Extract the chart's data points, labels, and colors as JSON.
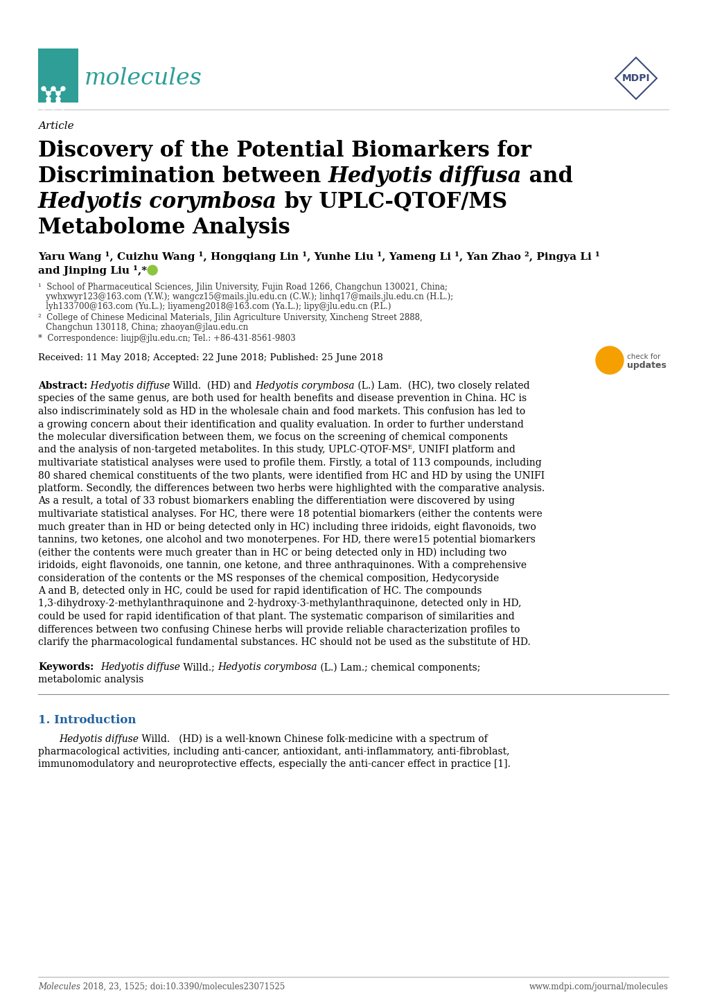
{
  "background_color": "#ffffff",
  "molecules_logo_color": "#2e9e96",
  "mdpi_color": "#3b4a7a",
  "article_label": "Article",
  "title_line1": "Discovery of the Potential Biomarkers for",
  "title_line2_normal1": "Discrimination between ",
  "title_line2_italic": "Hedyotis diffusa",
  "title_line2_normal2": " and",
  "title_line3_italic": "Hedyotis corymbosa",
  "title_line3_normal": " by UPLC-QTOF/MS",
  "title_line4": "Metabolome Analysis",
  "author_line1": "Yaru Wang ¹, Cuizhu Wang ¹, Hongqiang Lin ¹, Yunhe Liu ¹, Yameng Li ¹, Yan Zhao ², Pingya Li ¹",
  "author_line2": "and Jinping Liu ¹,*",
  "aff1_line1": "¹  School of Pharmaceutical Sciences, Jilin University, Fujin Road 1266, Changchun 130021, China;",
  "aff1_line2": "   ywhxwyr123@163.com (Y.W.); wangcz15@mails.jlu.edu.cn (C.W.); linhq17@mails.jlu.edu.cn (H.L.);",
  "aff1_line3": "   lyh133700@163.com (Yu.L.); liyameng2018@163.com (Ya.L.); lipy@jlu.edu.cn (P.L.)",
  "aff2_line1": "²  College of Chinese Medicinal Materials, Jilin Agriculture University, Xincheng Street 2888,",
  "aff2_line2": "   Changchun 130118, China; zhaoyan@jlau.edu.cn",
  "aff3": "*  Correspondence: liujp@jlu.edu.cn; Tel.: +86-431-8561-9803",
  "received_line": "Received: 11 May 2018; Accepted: 22 June 2018; Published: 25 June 2018",
  "abstract_lines": [
    "Abstract: Hedyotis diffuse Willd.  (HD) and Hedyotis corymbosa (L.) Lam.  (HC), two closely related",
    "species of the same genus, are both used for health benefits and disease prevention in China. HC is",
    "also indiscriminately sold as HD in the wholesale chain and food markets. This confusion has led to",
    "a growing concern about their identification and quality evaluation. In order to further understand",
    "the molecular diversification between them, we focus on the screening of chemical components",
    "and the analysis of non-targeted metabolites. In this study, UPLC-QTOF-MSᴱ, UNIFI platform and",
    "multivariate statistical analyses were used to profile them. Firstly, a total of 113 compounds, including",
    "80 shared chemical constituents of the two plants, were identified from HC and HD by using the UNIFI",
    "platform. Secondly, the differences between two herbs were highlighted with the comparative analysis.",
    "As a result, a total of 33 robust biomarkers enabling the differentiation were discovered by using",
    "multivariate statistical analyses. For HC, there were 18 potential biomarkers (either the contents were",
    "much greater than in HD or being detected only in HC) including three iridoids, eight flavonoids, two",
    "tannins, two ketones, one alcohol and two monoterpenes. For HD, there were15 potential biomarkers",
    "(either the contents were much greater than in HC or being detected only in HD) including two",
    "iridoids, eight flavonoids, one tannin, one ketone, and three anthraquinones. With a comprehensive",
    "consideration of the contents or the MS responses of the chemical composition, Hedycoryside",
    "A and B, detected only in HC, could be used for rapid identification of HC. The compounds",
    "1,3-dihydroxy-2-methylanthraquinone and 2-hydroxy-3-methylanthraquinone, detected only in HD,",
    "could be used for rapid identification of that plant. The systematic comparison of similarities and",
    "differences between two confusing Chinese herbs will provide reliable characterization profiles to",
    "clarify the pharmacological fundamental substances. HC should not be used as the substitute of HD."
  ],
  "kw_label": "Keywords:",
  "kw_italic1": "Hedyotis diffuse",
  "kw_normal1": " Willd.;",
  "kw_italic2": "Hedyotis corymbosa",
  "kw_normal2": " (L.) Lam.; chemical components;",
  "kw_line2": "metabolomic analysis",
  "section1_title": "1. Introduction",
  "intro_italic": "Hedyotis diffuse",
  "intro_normal": " Willd.   (HD) is a well-known Chinese folk-medicine with a spectrum of",
  "intro_line2": "pharmacological activities, including anti-cancer, antioxidant, anti-inflammatory, anti-fibroblast,",
  "intro_line3": "immunomodulatory and neuroprotective effects, especially the anti-cancer effect in practice [1].",
  "footer_left_italic": "Molecules",
  "footer_left_normal": " 2018, 23, 1525; doi:10.3390/molecules23071525",
  "footer_right": "www.mdpi.com/journal/molecules"
}
